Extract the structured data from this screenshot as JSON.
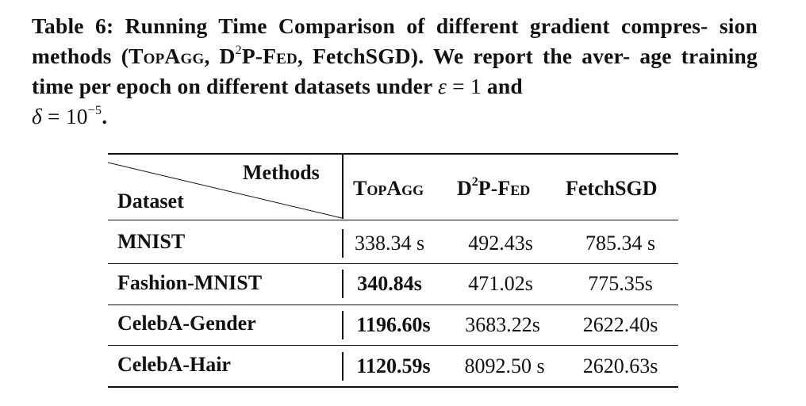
{
  "caption": {
    "label": "Table 6:",
    "line1_rest": "Running Time Comparison of different gradient compres-",
    "line2_a": "sion methods (",
    "m1": "TopAgg",
    "sep1": ", D",
    "sup1": "2",
    "m2a": "P-",
    "m2b": "Fed",
    "sep2": ", FetchSGD). We report the aver-",
    "line3_a": "age training time per epoch on different datasets under ",
    "eps": "ε",
    "eq1": " = 1 ",
    "and": "and",
    "delta": "δ",
    "eq2": " = 10",
    "exp": "−5",
    "end": "."
  },
  "table": {
    "corner_top": "Methods",
    "corner_bottom": "Dataset",
    "col1": "TopAgg",
    "col2_a": "D",
    "col2_sup": "2",
    "col2_b": "P-",
    "col2_c": "Fed",
    "col3": "FetchSGD",
    "rows": [
      {
        "dataset": "MNIST",
        "topagg": "338.34 s",
        "d2pfed": "492.43s",
        "fetchsgd": "785.34 s"
      },
      {
        "dataset": "Fashion-MNIST",
        "topagg": "340.84s",
        "d2pfed": "471.02s",
        "fetchsgd": "775.35s"
      },
      {
        "dataset": "CelebA-Gender",
        "topagg": "1196.60s",
        "d2pfed": "3683.22s",
        "fetchsgd": "2622.40s"
      },
      {
        "dataset": "CelebA-Hair",
        "topagg": "1120.59s",
        "d2pfed": "8092.50 s",
        "fetchsgd": "2620.63s"
      }
    ]
  }
}
